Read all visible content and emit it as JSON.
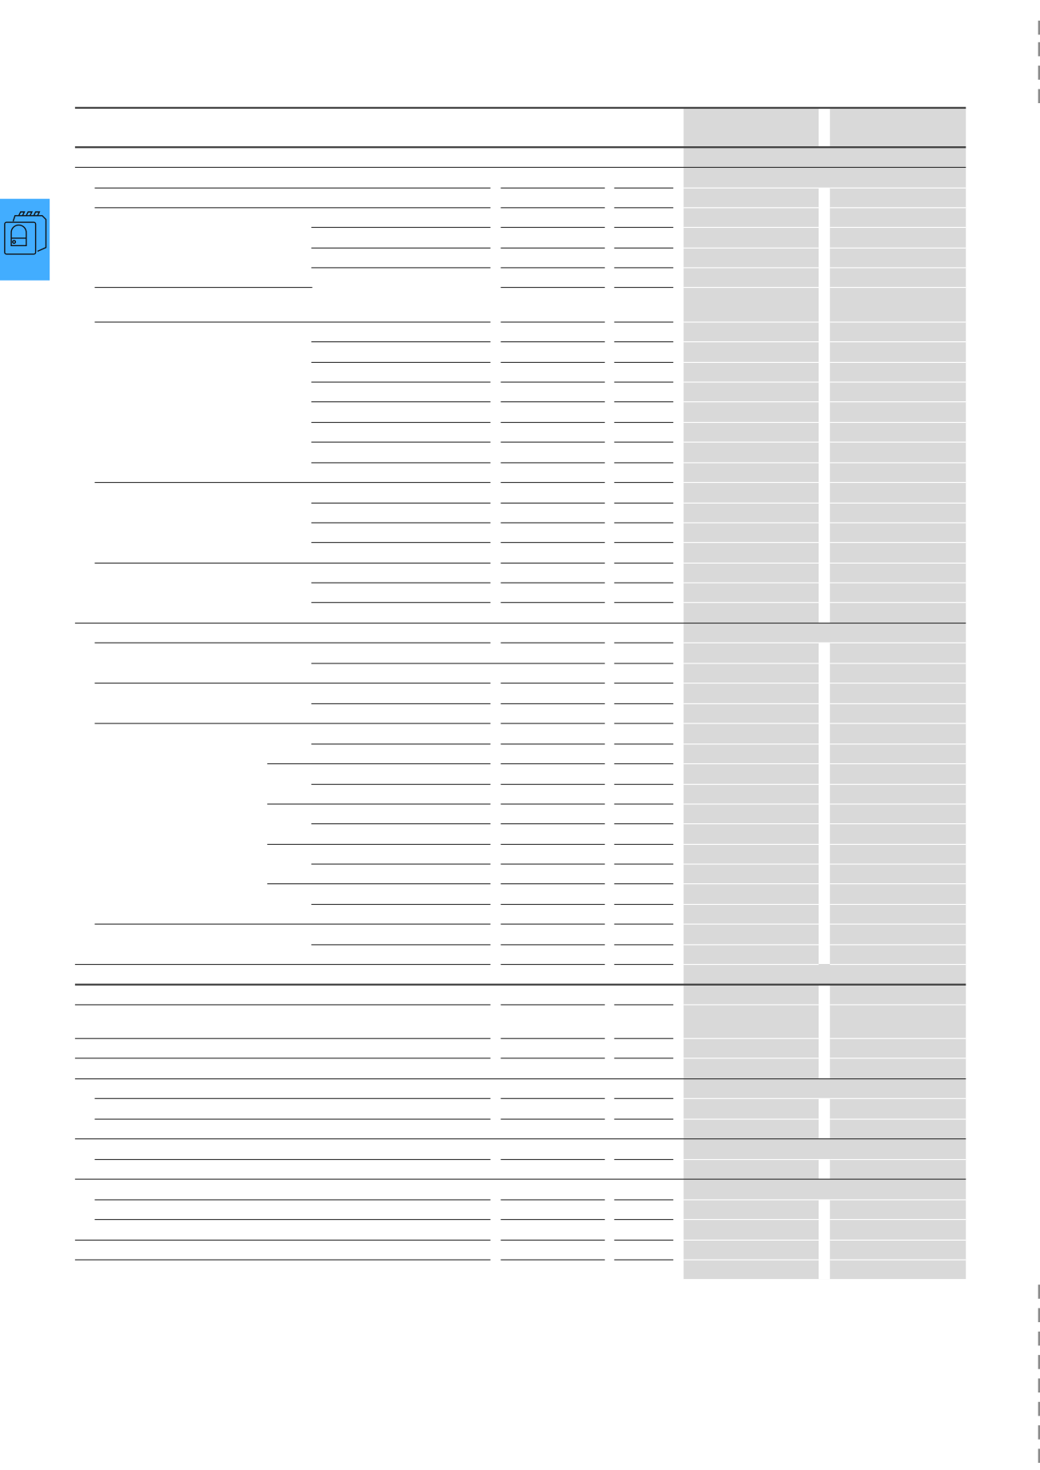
{
  "side_tab": {
    "icon": "rotary-switch-icon",
    "color": "#42adff"
  },
  "colors": {
    "shaded_column": "#d9d9d9",
    "rule": "#333333"
  }
}
